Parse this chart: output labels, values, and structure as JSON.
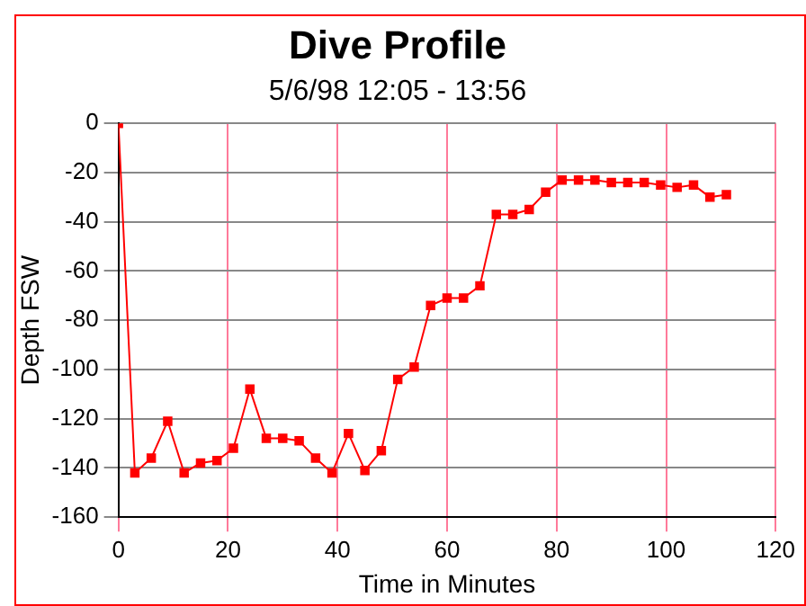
{
  "chart_data": {
    "type": "line",
    "title": "Dive Profile",
    "subtitle": "5/6/98 12:05 - 13:56",
    "xlabel": "Time in Minutes",
    "ylabel": "Depth FSW",
    "x": [
      0,
      3,
      6,
      9,
      12,
      15,
      18,
      21,
      24,
      27,
      30,
      33,
      36,
      39,
      42,
      45,
      48,
      51,
      54,
      57,
      60,
      63,
      66,
      69,
      72,
      75,
      78,
      81,
      84,
      87,
      90,
      93,
      96,
      99,
      102,
      105,
      108,
      111
    ],
    "series": [
      {
        "color": "#ff0000",
        "values": [
          0,
          -142,
          -136,
          -121,
          -142,
          -138,
          -137,
          -132,
          -108,
          -128,
          -128,
          -129,
          -136,
          -142,
          -126,
          -141,
          -133,
          -104,
          -99,
          -74,
          -71,
          -71,
          -66,
          -37,
          -37,
          -35,
          -28,
          -23,
          -23,
          -23,
          -24,
          -24,
          -24,
          -25,
          -26,
          -25,
          -30,
          -29
        ]
      }
    ],
    "xlim": [
      0,
      120
    ],
    "xticks": [
      0,
      20,
      40,
      60,
      80,
      100,
      120
    ],
    "ylim": [
      -160,
      0
    ],
    "yticks": [
      -160,
      -140,
      -120,
      -100,
      -80,
      -60,
      -40,
      -20,
      0
    ],
    "grid": true,
    "marker": "square",
    "line_style": "solid",
    "legend": false
  }
}
